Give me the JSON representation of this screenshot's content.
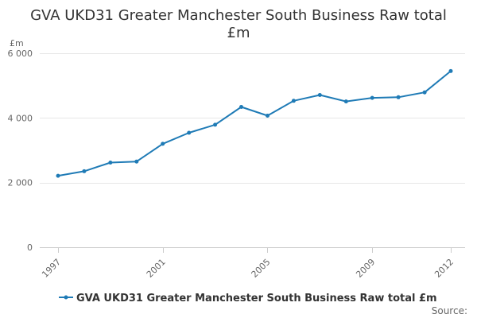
{
  "chart_data": {
    "type": "line",
    "title_lines": [
      "GVA UKD31 Greater Manchester South Business Raw total",
      "£m"
    ],
    "ylabel": "£m",
    "xlabel": "",
    "x": [
      1997,
      1998,
      1999,
      2000,
      2001,
      2002,
      2003,
      2004,
      2005,
      2006,
      2007,
      2008,
      2009,
      2010,
      2011,
      2012
    ],
    "series": [
      {
        "name": "GVA UKD31 Greater Manchester South Business Raw total £m",
        "color": "#1f7bb6",
        "values": [
          2210,
          2350,
          2620,
          2650,
          3200,
          3540,
          3790,
          4340,
          4070,
          4530,
          4710,
          4510,
          4620,
          4640,
          4790,
          5450
        ]
      }
    ],
    "ylim": [
      0,
      6000
    ],
    "y_ticks": [
      0,
      2000,
      4000,
      6000
    ],
    "y_tick_labels": [
      "0",
      "2 000",
      "4 000",
      "6 000"
    ],
    "x_ticks": [
      1997,
      2001,
      2005,
      2009,
      2012
    ],
    "x_tick_labels": [
      "1997",
      "2001",
      "2005",
      "2009",
      "2012"
    ],
    "grid": true,
    "legend_position": "bottom"
  },
  "source_label": "Source:"
}
